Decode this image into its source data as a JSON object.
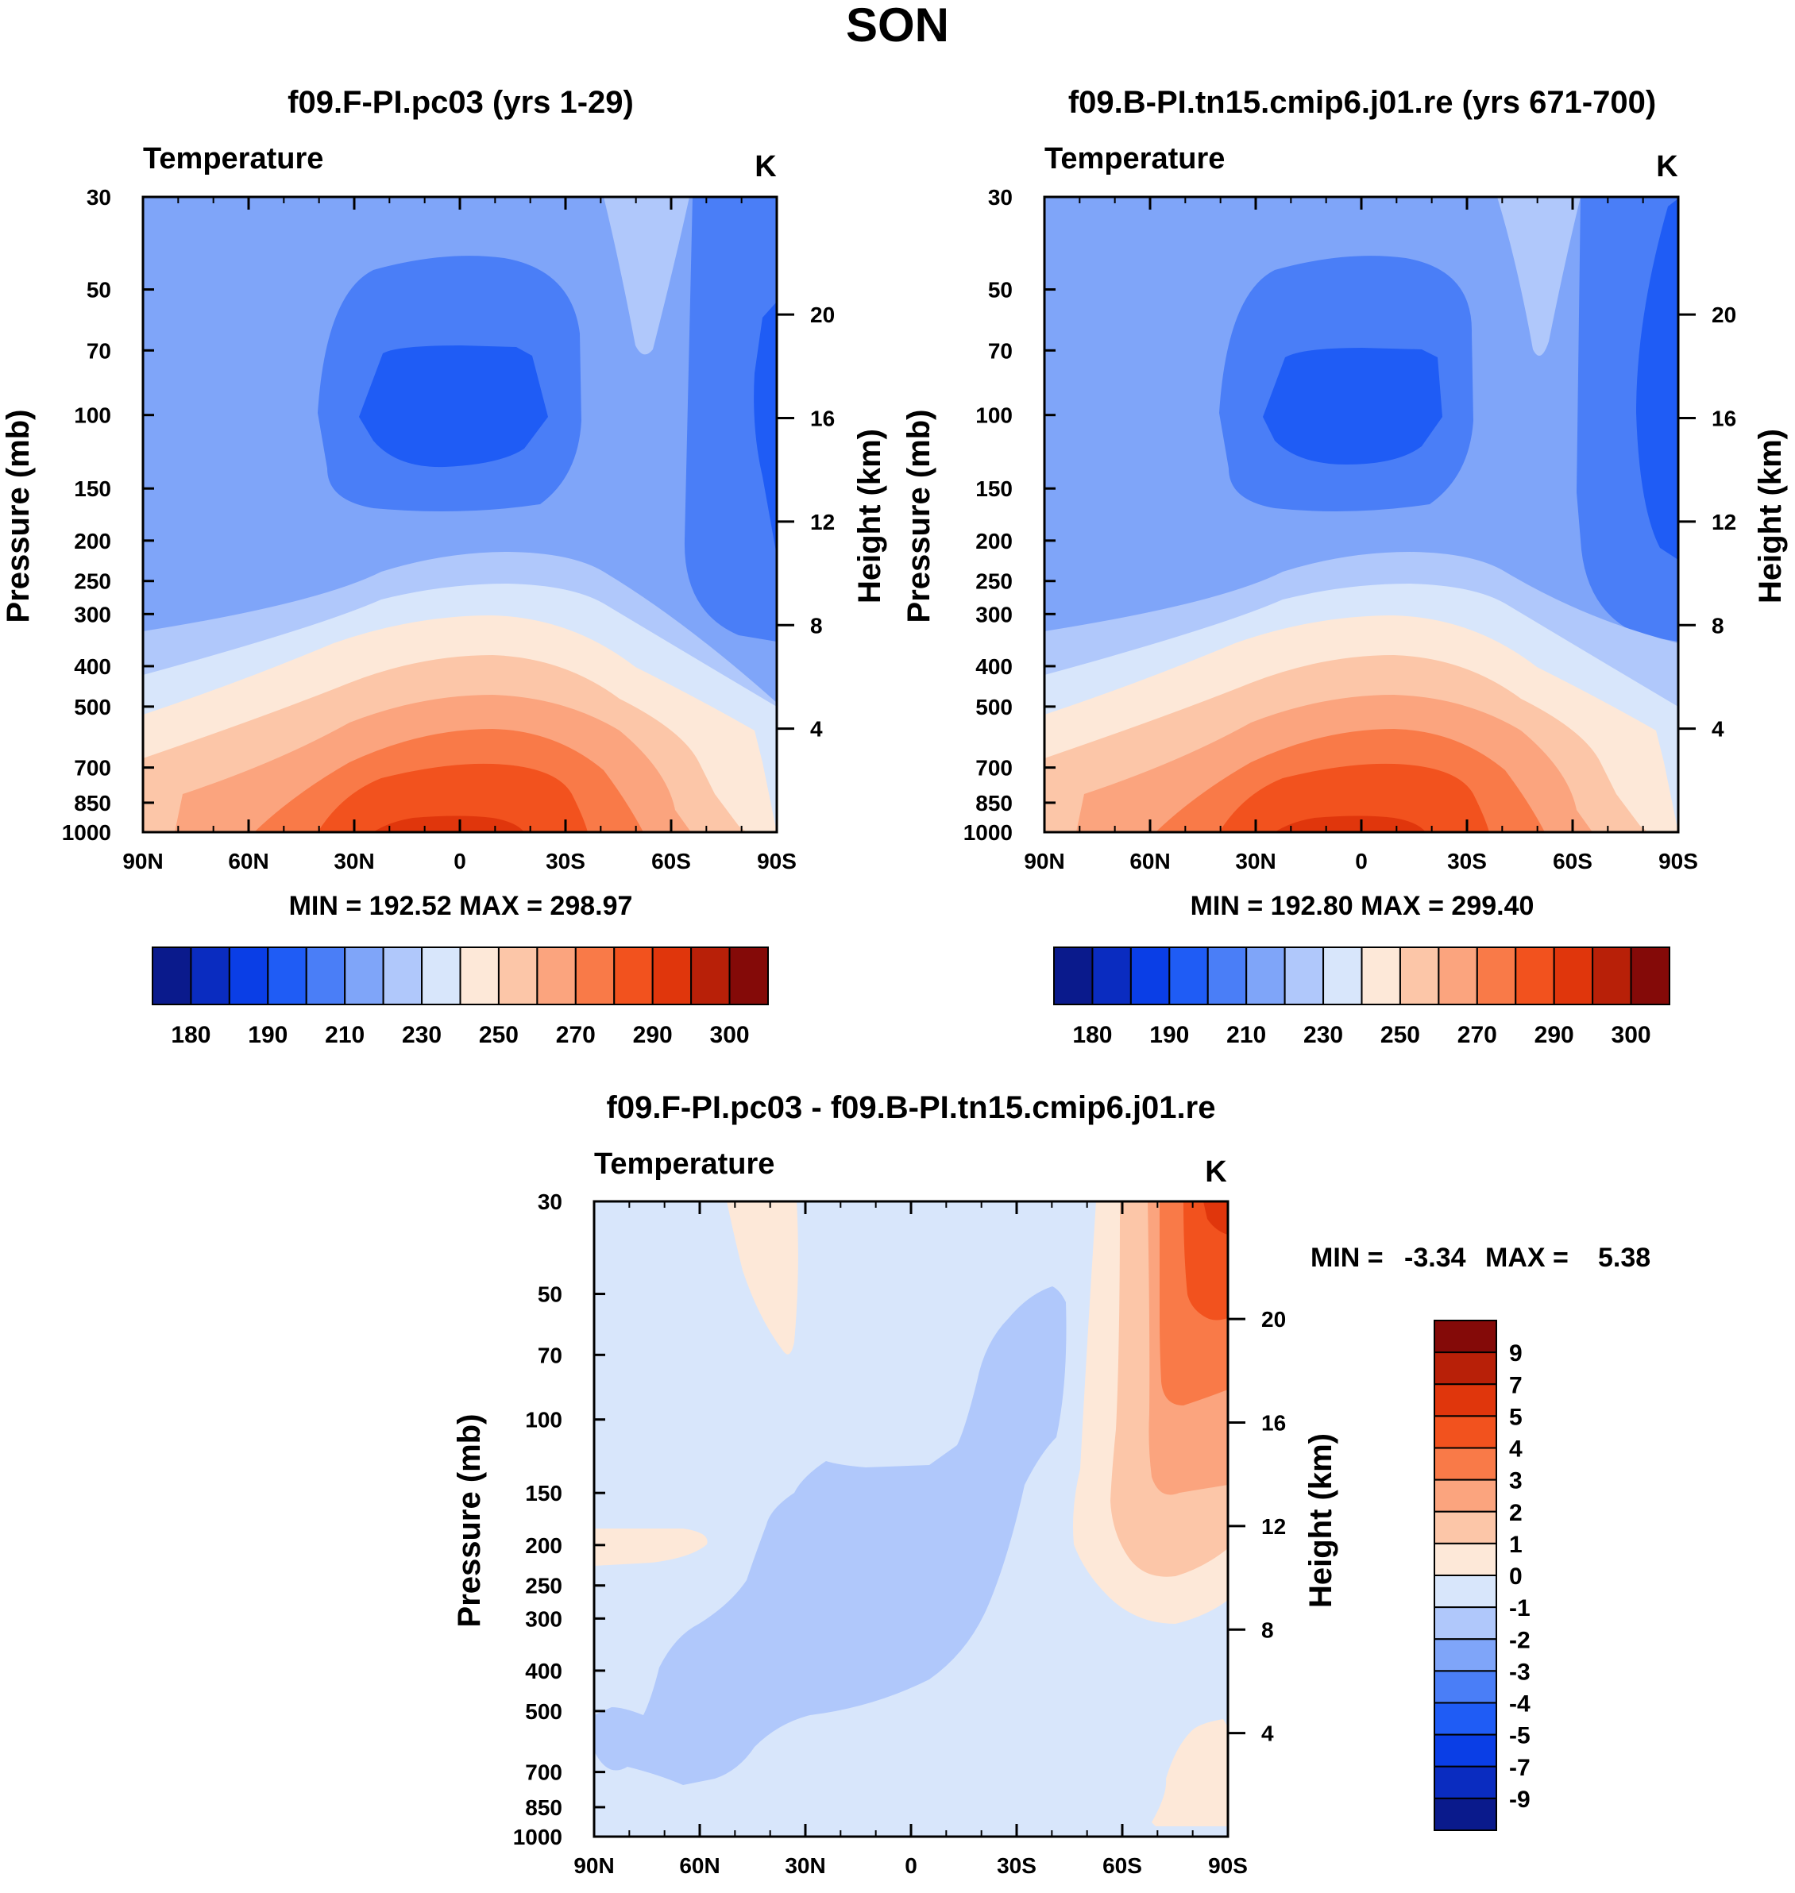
{
  "figure": {
    "title": "SON"
  },
  "panel_left": {
    "title": "f09.F-PI.pc03 (yrs 1-29)",
    "subtitle": "Temperature",
    "units": "K",
    "ylabel": "Pressure (mb)",
    "ylabel_right": "Height (km)",
    "stats": "MIN = 192.52  MAX = 298.97"
  },
  "panel_right": {
    "title": "f09.B-PI.tn15.cmip6.j01.re (yrs 671-700)",
    "subtitle": "Temperature",
    "units": "K",
    "ylabel": "Pressure (mb)",
    "ylabel_right": "Height (km)",
    "stats": "MIN = 192.80  MAX = 299.40"
  },
  "panel_diff": {
    "title": "f09.F-PI.pc03 - f09.B-PI.tn15.cmip6.j01.re",
    "subtitle": "Temperature",
    "units": "K",
    "ylabel": "Pressure (mb)",
    "ylabel_right": "Height (km)",
    "stats_min_label": "MIN =",
    "stats_min": "-3.34",
    "stats_max_label": "MAX =",
    "stats_max": "5.38"
  },
  "chart_data": [
    {
      "type": "heatmap",
      "name": "f09.F-PI.pc03 (yrs 1-29)",
      "field": "Temperature (K), zonal mean pressure-latitude",
      "x": [
        "90N",
        "60N",
        "30N",
        "0",
        "30S",
        "60S",
        "90S"
      ],
      "y_pressure_mb": [
        30,
        50,
        70,
        100,
        150,
        200,
        250,
        300,
        400,
        500,
        700,
        850,
        1000
      ],
      "y_height_km": [
        20,
        16,
        12,
        8,
        4
      ],
      "min": 192.52,
      "max": 298.97
    },
    {
      "type": "heatmap",
      "name": "f09.B-PI.tn15.cmip6.j01.re (yrs 671-700)",
      "field": "Temperature (K), zonal mean pressure-latitude",
      "x": [
        "90N",
        "60N",
        "30N",
        "0",
        "30S",
        "60S",
        "90S"
      ],
      "y_pressure_mb": [
        30,
        50,
        70,
        100,
        150,
        200,
        250,
        300,
        400,
        500,
        700,
        850,
        1000
      ],
      "y_height_km": [
        20,
        16,
        12,
        8,
        4
      ],
      "min": 192.8,
      "max": 299.4
    },
    {
      "type": "heatmap",
      "name": "f09.F-PI.pc03 - f09.B-PI.tn15.cmip6.j01.re",
      "field": "Temperature difference (K)",
      "x": [
        "90N",
        "60N",
        "30N",
        "0",
        "30S",
        "60S",
        "90S"
      ],
      "y_pressure_mb": [
        30,
        50,
        70,
        100,
        150,
        200,
        250,
        300,
        400,
        500,
        700,
        850,
        1000
      ],
      "y_height_km": [
        20,
        16,
        12,
        8,
        4
      ],
      "min": -3.34,
      "max": 5.38
    }
  ],
  "axes": {
    "x_ticks": [
      "90N",
      "60N",
      "30N",
      "0",
      "30S",
      "60S",
      "90S"
    ],
    "pressure_ticks": [
      30,
      50,
      70,
      100,
      150,
      200,
      250,
      300,
      400,
      500,
      700,
      850,
      1000
    ],
    "height_ticks": [
      20,
      16,
      12,
      8,
      4
    ]
  },
  "colorbar_temp": {
    "colors": [
      "#0a1a8c",
      "#0a2cc0",
      "#0a3ee6",
      "#1f5cf5",
      "#4a7ef7",
      "#7fa5f9",
      "#b0c8fb",
      "#d8e6fb",
      "#fde8d8",
      "#fcc6a8",
      "#fba47e",
      "#f97a48",
      "#f2521e",
      "#e0360c",
      "#b82008",
      "#840a08"
    ],
    "labels": [
      "180",
      "190",
      "210",
      "230",
      "250",
      "270",
      "290",
      "300"
    ]
  },
  "colorbar_diff": {
    "colors": [
      "#0a1a8c",
      "#0a2cc0",
      "#0a3ee6",
      "#1f5cf5",
      "#4a7ef7",
      "#7fa5f9",
      "#b0c8fb",
      "#d8e6fb",
      "#fde8d8",
      "#fcc6a8",
      "#fba47e",
      "#f97a48",
      "#f2521e",
      "#e0360c",
      "#b82008",
      "#840a08"
    ],
    "labels": [
      "9",
      "7",
      "5",
      "4",
      "3",
      "2",
      "1",
      "0",
      "-1",
      "-2",
      "-3",
      "-4",
      "-5",
      "-7",
      "-9"
    ]
  }
}
